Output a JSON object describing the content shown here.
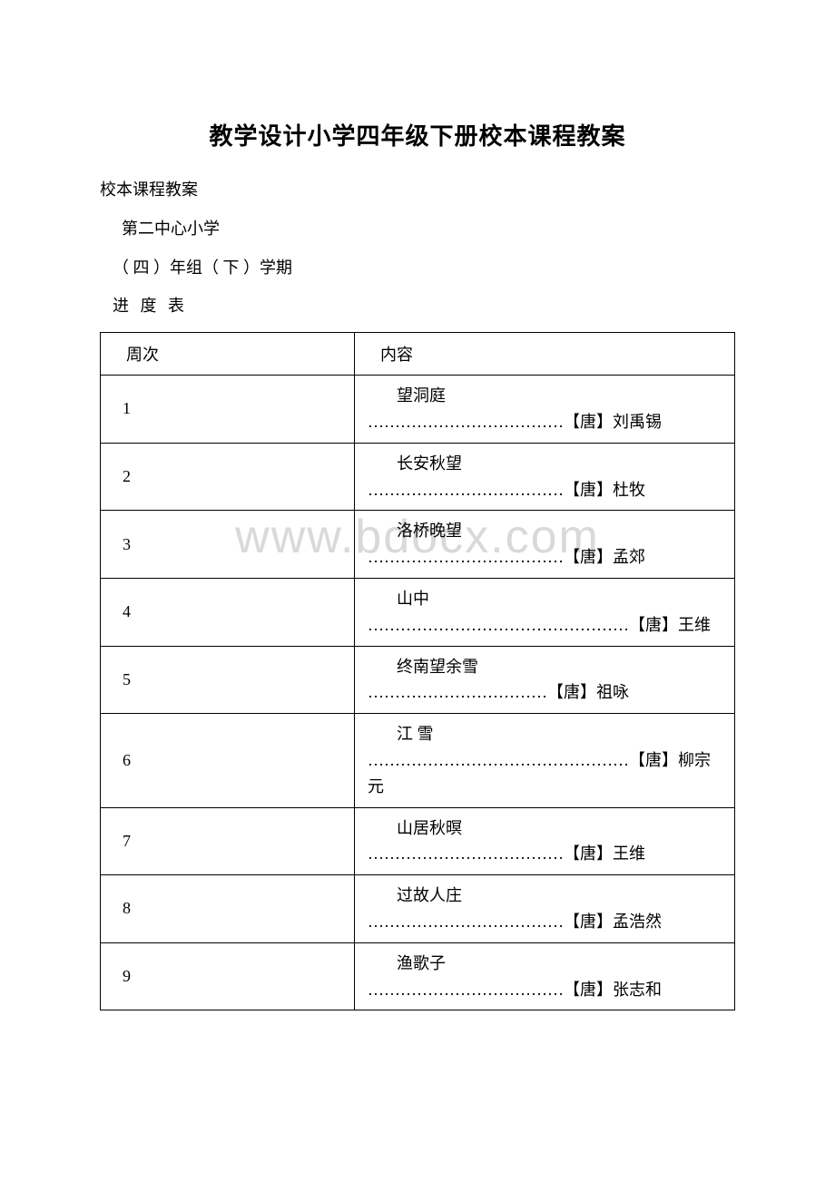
{
  "title": "教学设计小学四年级下册校本课程教案",
  "subtitle1": "校本课程教案",
  "subtitle2": "第二中心小学",
  "subtitle3": "（ 四 ）年组（ 下 ）学期",
  "subtitle4": "进 度 表",
  "watermark": "www.bdocx.com",
  "table": {
    "headers": {
      "week": "周次",
      "content": "内容"
    },
    "rows": [
      {
        "week": "1",
        "poem": "望洞庭",
        "author": "………………………………【唐】刘禹锡"
      },
      {
        "week": "2",
        "poem": "长安秋望",
        "author": "………………………………【唐】杜牧"
      },
      {
        "week": "3",
        "poem": "洛桥晚望",
        "author": "………………………………【唐】孟郊"
      },
      {
        "week": "4",
        "poem": "山中",
        "author": "…………………………………………【唐】王维"
      },
      {
        "week": "5",
        "poem": "终南望余雪",
        "author": "……………………………【唐】祖咏"
      },
      {
        "week": "6",
        "poem": "江 雪",
        "author": "…………………………………………【唐】柳宗元"
      },
      {
        "week": "7",
        "poem": "山居秋暝",
        "author": "………………………………【唐】王维"
      },
      {
        "week": "8",
        "poem": "过故人庄",
        "author": "………………………………【唐】孟浩然"
      },
      {
        "week": "9",
        "poem": "渔歌子",
        "author": "………………………………【唐】张志和"
      }
    ]
  }
}
